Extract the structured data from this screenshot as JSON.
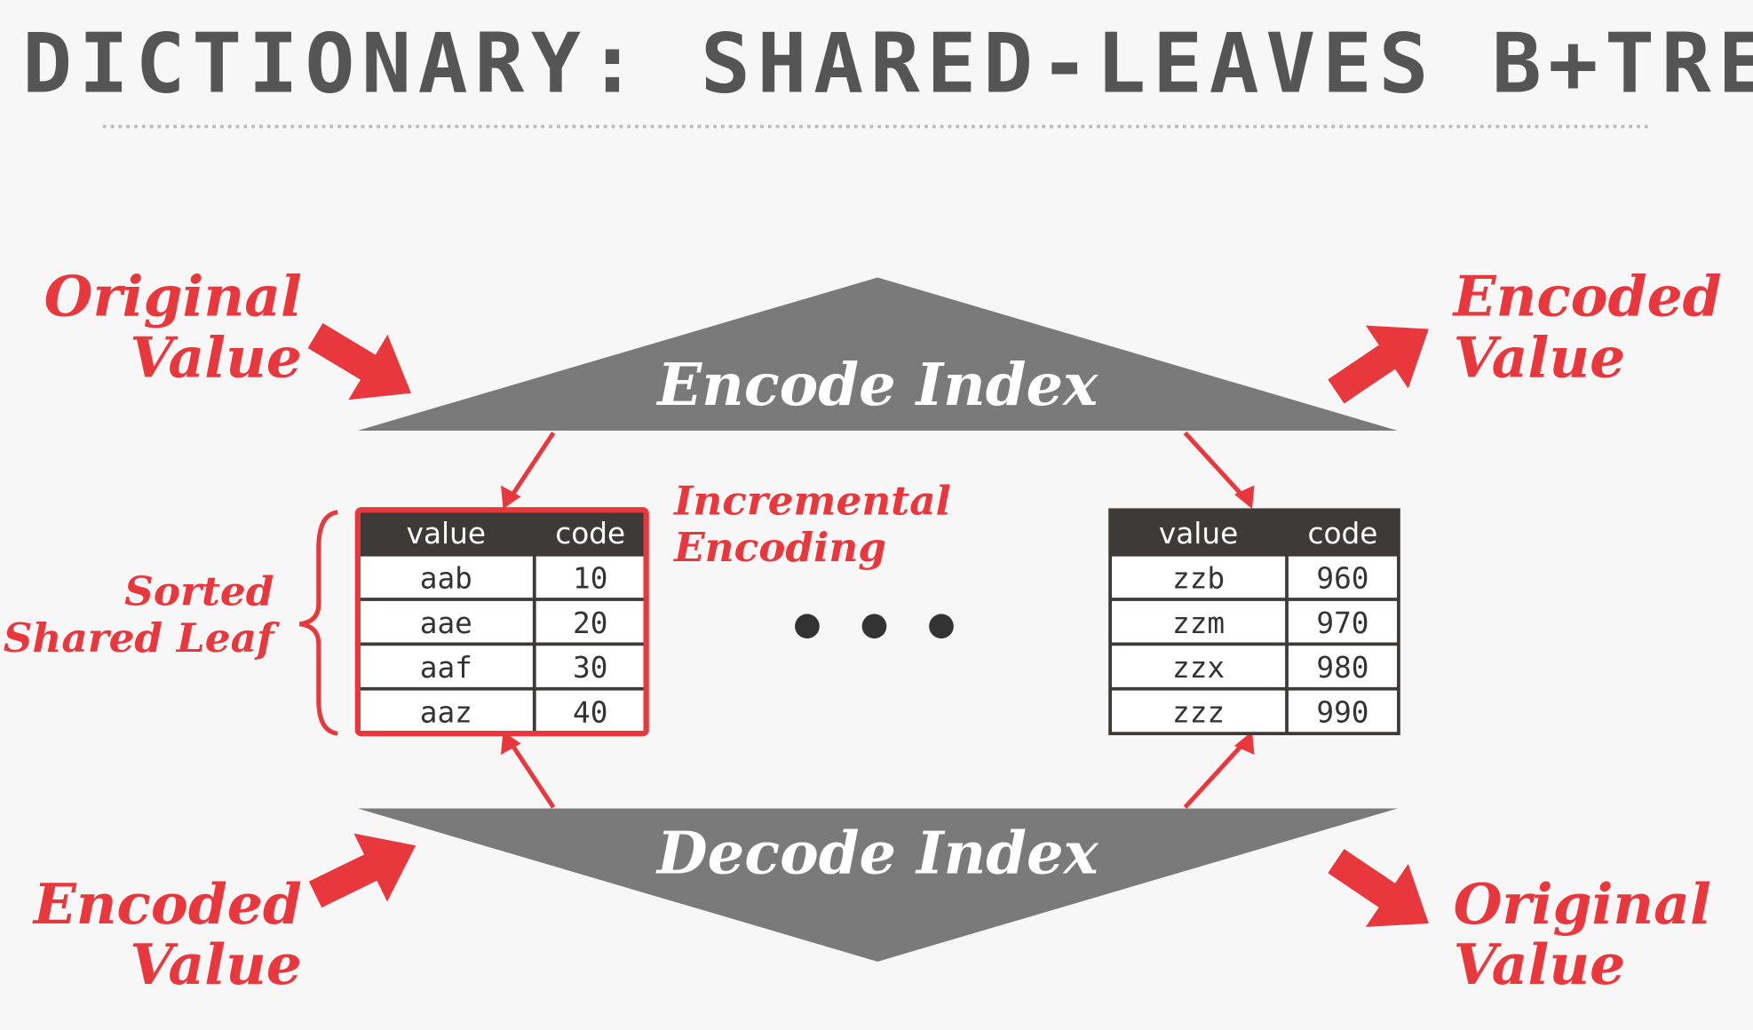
{
  "title": "DICTIONARY: SHARED-LEAVES B+TREE",
  "encode_index": "Encode Index",
  "decode_index": "Decode Index",
  "top_left_label": [
    "Original",
    "Value"
  ],
  "top_right_label": [
    "Encoded",
    "Value"
  ],
  "bottom_left_label": [
    "Encoded",
    "Value"
  ],
  "bottom_right_label": [
    "Original",
    "Value"
  ],
  "incremental_encoding": [
    "Incremental",
    "Encoding"
  ],
  "sorted_shared_leaf": [
    "Sorted",
    "Shared Leaf"
  ],
  "left_table": {
    "header": [
      "value",
      "code"
    ],
    "rows": [
      [
        "aab",
        10
      ],
      [
        "aae",
        20
      ],
      [
        "aaf",
        30
      ],
      [
        "aaz",
        40
      ]
    ]
  },
  "right_table": {
    "header": [
      "value",
      "code"
    ],
    "rows": [
      [
        "zzb",
        960
      ],
      [
        "zzm",
        970
      ],
      [
        "zzx",
        980
      ],
      [
        "zzz",
        990
      ]
    ]
  }
}
